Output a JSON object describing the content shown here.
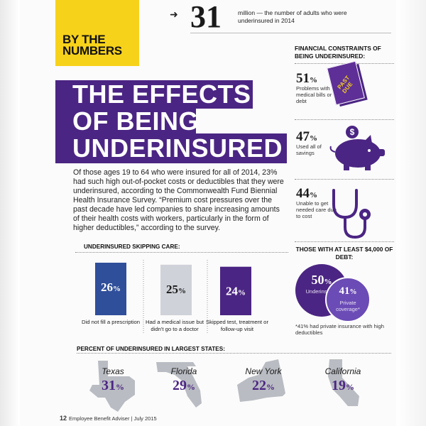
{
  "badge": {
    "line1": "BY THE",
    "line2": "NUMBERS"
  },
  "top_stat": {
    "value": "31",
    "description": "million — the number of adults who were underinsured in 2014"
  },
  "headline": {
    "line1": "THE EFFECTS",
    "line2": "OF BEING",
    "line3": "UNDERINSURED"
  },
  "intro": "Of those ages 19 to 64 who were insured for all of 2014, 23% had such high out-of-pocket costs or deductibles that they were underinsured, according to the Commonwealth Fund Biennial Health Insurance Survey. “Premium cost pressures over the past decade have led companies to share increasing amounts of their health costs with workers, particularly in the form of higher deductibles,” according to the survey.",
  "financial": {
    "heading": "FINANCIAL CONSTRAINTS OF BEING UNDERINSURED:",
    "items": [
      {
        "value": "51",
        "unit": "%",
        "label": "Problems with medical bills or debt",
        "icon": "past-due-bills-icon"
      },
      {
        "value": "47",
        "unit": "%",
        "label": "Used all of savings",
        "icon": "piggy-bank-icon"
      },
      {
        "value": "44",
        "unit": "%",
        "label": "Unable to get needed care due to cost",
        "icon": "stethoscope-icon"
      }
    ],
    "stamp_text": "PAST DUE"
  },
  "chart_data": {
    "type": "bar",
    "title": "UNDERINSURED SKIPPING CARE:",
    "categories": [
      "Did not fill a prescription",
      "Had a medical issue but didn't go to a doctor",
      "Skipped test, treatment or follow-up visit"
    ],
    "values": [
      26,
      25,
      24
    ],
    "value_labels": [
      "26",
      "25",
      "24"
    ],
    "unit": "%",
    "colors": [
      "#2f4f9a",
      "#cfd2d8",
      "#4b2583"
    ]
  },
  "debt": {
    "heading": "THOSE WITH AT LEAST $4,000 OF DEBT:",
    "underinsured": {
      "value": "50",
      "unit": "%",
      "label": "Underinsured"
    },
    "private": {
      "value": "41",
      "unit": "%",
      "label": "Private coverage*"
    },
    "note": "*41% had private insurance with high deductibles"
  },
  "states": {
    "heading": "PERCENT OF UNDERINSURED IN LARGEST STATES:",
    "items": [
      {
        "name": "Texas",
        "value": "31",
        "unit": "%"
      },
      {
        "name": "Florida",
        "value": "29",
        "unit": "%"
      },
      {
        "name": "New York",
        "value": "22",
        "unit": "%"
      },
      {
        "name": "California",
        "value": "19",
        "unit": "%"
      }
    ]
  },
  "footer": {
    "page": "12",
    "text": "Employee Benefit Adviser | July 2015"
  },
  "colors": {
    "purple": "#4b2583",
    "yellow": "#f7d21b",
    "blue_bar": "#2f4f9a",
    "grey_bar": "#cfd2d8",
    "state_grey": "#b9bcc2"
  }
}
